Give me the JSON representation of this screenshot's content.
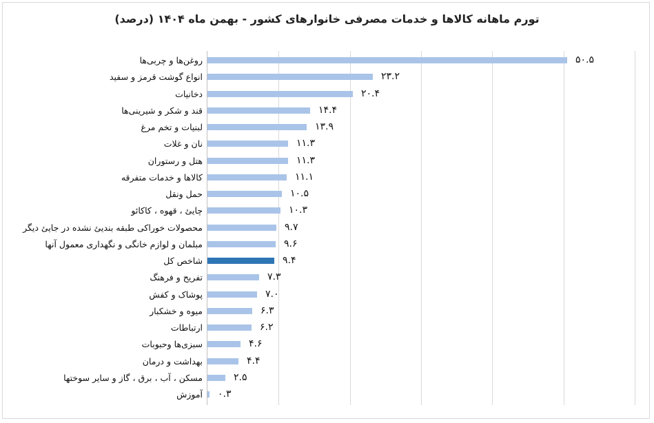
{
  "chart_data": {
    "type": "bar",
    "orientation": "horizontal",
    "title": "تورم ماهانه کالاها و خدمات مصرفی خانوارهای کشور - بهمن ماه ۱۴۰۴ (درصد)",
    "xlabel": "",
    "ylabel": "",
    "xlim": [
      0,
      60
    ],
    "grid": true,
    "gridlines_x": [
      0,
      10,
      20,
      30,
      40,
      50,
      60
    ],
    "legend": null,
    "colors": {
      "default": "#a9c4e8",
      "highlight": "#2e75b6"
    },
    "categories": [
      "روغن‌ها و چربی‌ها",
      "انواع گوشت قرمز و سفید",
      "دخانیات",
      "قند و شکر و شیرینی‌ها",
      "لبنیات و تخم مرغ",
      "نان و غلات",
      "هتل و رستوران",
      "کالاها و خدمات متفرقه",
      "حمل ونقل",
      "چایئ ، قهوه ، کاکائو",
      "محصولات خوراکی طبقه بندیئ نشده در جایئ دیگر",
      "مبلمان و لوازم خانگی و نگهداری معمول آنها",
      "شاخص کل",
      "تفریح و فرهنگ",
      "پوشاک و کفش",
      "میوه و خشکبار",
      "ارتباطات",
      "سبزی‌ها وحبوبات",
      "بهداشت و درمان",
      "مسکن ، آب ، برق ، گاز و سایر سوختها",
      "آموزش"
    ],
    "values": [
      50.5,
      23.2,
      20.4,
      14.4,
      13.9,
      11.3,
      11.3,
      11.1,
      10.5,
      10.3,
      9.7,
      9.6,
      9.4,
      7.3,
      7.0,
      6.3,
      6.2,
      4.6,
      4.4,
      2.5,
      0.3
    ],
    "value_labels": [
      "۵۰.۵",
      "۲۳.۲",
      "۲۰.۴",
      "۱۴.۴",
      "۱۳.۹",
      "۱۱.۳",
      "۱۱.۳",
      "۱۱.۱",
      "۱۰.۵",
      "۱۰.۳",
      "۹.۷",
      "۹.۶",
      "۹.۴",
      "۷.۳",
      "۷.۰",
      "۶.۳",
      "۶.۲",
      "۴.۶",
      "۴.۴",
      "۲.۵",
      "۰.۳"
    ],
    "highlight_index": 12
  }
}
